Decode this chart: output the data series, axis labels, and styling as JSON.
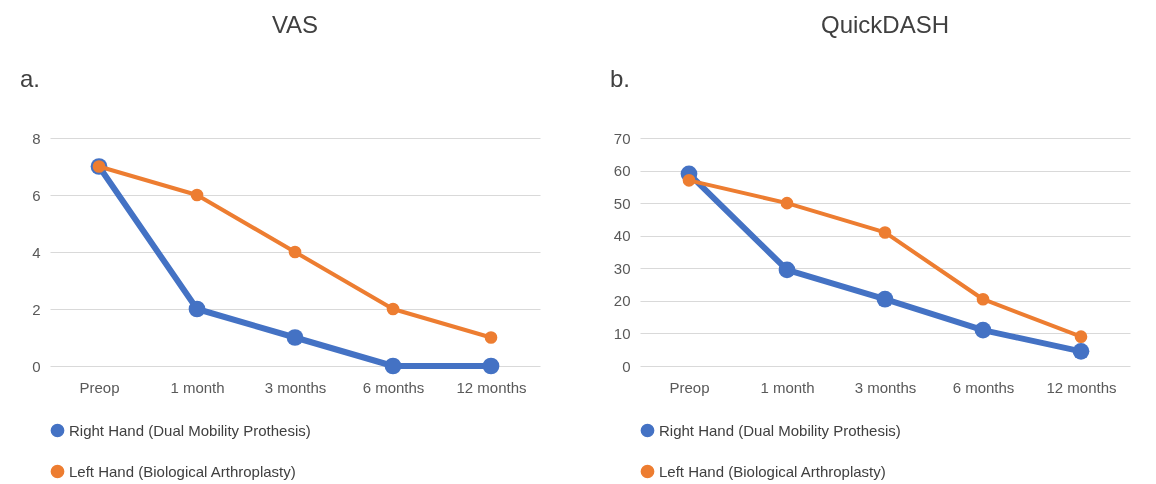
{
  "chart_data": [
    {
      "type": "line",
      "title": "VAS",
      "annotations": [
        "a."
      ],
      "categories": [
        "Preop",
        "1 month",
        "3 months",
        "6 months",
        "12 months"
      ],
      "series": [
        {
          "name": "Right Hand (Dual Mobility Prothesis)",
          "color": "#4472c4",
          "values": [
            7,
            2,
            1,
            0,
            0
          ]
        },
        {
          "name": "Left Hand (Biological Arthroplasty)",
          "color": "#ed7d31",
          "values": [
            7,
            6,
            4,
            2,
            1
          ]
        }
      ],
      "ylim": [
        0,
        8
      ],
      "yticks": [
        0,
        2,
        4,
        6,
        8
      ],
      "grid": "y",
      "legend": "bottom",
      "marker": "circle",
      "line_style": "solid"
    },
    {
      "type": "line",
      "title": "QuickDASH",
      "annotations": [
        "b."
      ],
      "categories": [
        "Preop",
        "1 month",
        "3 months",
        "6 months",
        "12 months"
      ],
      "series": [
        {
          "name": "Right Hand (Dual Mobility Prothesis)",
          "color": "#4472c4",
          "values": [
            59,
            29.5,
            20.5,
            11,
            4.5
          ]
        },
        {
          "name": "Left Hand (Biological Arthroplasty)",
          "color": "#ed7d31",
          "values": [
            57,
            50,
            41,
            20.5,
            9
          ]
        }
      ],
      "ylim": [
        0,
        70
      ],
      "yticks": [
        0,
        10,
        20,
        30,
        40,
        50,
        60,
        70
      ],
      "grid": "y",
      "legend": "bottom",
      "marker": "circle",
      "line_style": "solid"
    }
  ]
}
